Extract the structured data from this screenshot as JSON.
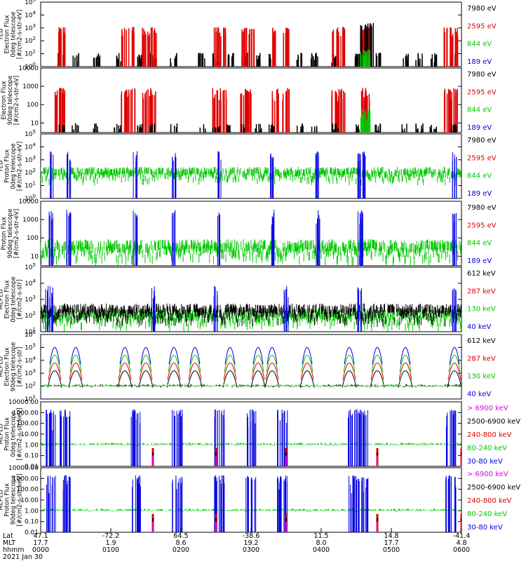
{
  "chart_data": [
    {
      "type": "line",
      "ylabel_lines": [
        "TED",
        "Electron Flux",
        "0deg telescope",
        "[#/cm2-s-str-eV]"
      ],
      "scale": "log",
      "ylim": [
        1,
        100000
      ],
      "tick_labels": [
        "10^0",
        "10^1",
        "10^2",
        "10^3",
        "10^4",
        "10^5"
      ],
      "legend": [
        {
          "name": "7980 eV",
          "color": "#000000"
        },
        {
          "name": "2595 eV",
          "color": "#e00000"
        },
        {
          "name": "844 eV",
          "color": "#00c800"
        },
        {
          "name": "189 eV",
          "color": "#0000e0"
        }
      ],
      "bursts": [
        {
          "series": "7980 eV",
          "x": [
            0.3,
            0.5,
            0.8,
            1.1,
            1.4,
            1.6,
            1.9,
            2.3,
            2.5,
            2.7,
            2.9,
            3.1,
            3.3,
            3.7,
            3.9,
            4.2,
            4.5,
            4.8,
            5.2,
            5.4,
            5.6,
            5.9
          ],
          "value": 10
        },
        {
          "series": "2595 eV",
          "x": [
            0.25,
            0.3,
            1.2,
            1.3,
            1.5,
            1.6,
            2.5,
            2.6,
            2.9,
            3.0,
            3.35,
            3.5,
            4.2,
            4.3,
            4.6,
            4.65,
            5.8,
            5.9
          ],
          "value": 1000
        },
        {
          "series": "7980 eV",
          "x": [
            4.6,
            4.7
          ],
          "value": 2000
        },
        {
          "series": "844 eV",
          "x": [
            4.6,
            4.65
          ],
          "value": 20
        }
      ]
    },
    {
      "type": "line",
      "ylabel_lines": [
        "Electron Flux",
        "90deg telescope",
        "[#/cm2-s-str-eV]"
      ],
      "scale": "log",
      "ylim": [
        3,
        10000
      ],
      "tick_labels": [
        "10",
        "100",
        "1000",
        "10000"
      ],
      "legend": [
        {
          "name": "7980 eV",
          "color": "#000000"
        },
        {
          "name": "2595 eV",
          "color": "#e00000"
        },
        {
          "name": "844 eV",
          "color": "#00c800"
        },
        {
          "name": "189 eV",
          "color": "#0000e0"
        }
      ],
      "bursts": [
        {
          "series": "2595 eV",
          "x": [
            0.25,
            0.3,
            1.2,
            1.3,
            1.5,
            1.6,
            2.5,
            2.6,
            2.9,
            3.0,
            3.35,
            3.5,
            4.2,
            4.3,
            4.6,
            4.65,
            5.8,
            5.9
          ],
          "value": 700
        },
        {
          "series": "7980 eV",
          "x": [
            0.3,
            0.5,
            0.8,
            1.1,
            1.4,
            1.6,
            1.9,
            2.3,
            2.5,
            2.7,
            2.9,
            3.1,
            3.3,
            3.7,
            3.9,
            4.2,
            4.5,
            4.8,
            5.2,
            5.4,
            5.6,
            5.9
          ],
          "value": 8
        },
        {
          "series": "844 eV",
          "x": [
            4.6,
            4.65
          ],
          "value": 50
        }
      ]
    },
    {
      "type": "line",
      "ylabel_lines": [
        "TED",
        "Proton Flux",
        "0deg telescope",
        "[#/cm2-s-str-eV]"
      ],
      "scale": "log",
      "ylim": [
        1,
        100000
      ],
      "tick_labels": [
        "10^0",
        "10^1",
        "10^2",
        "10^3",
        "10^4",
        "10^5"
      ],
      "legend": [
        {
          "name": "7980 eV",
          "color": "#000000"
        },
        {
          "name": "2595 eV",
          "color": "#e00000"
        },
        {
          "name": "844 eV",
          "color": "#00c800"
        },
        {
          "name": "189 eV",
          "color": "#0000e0"
        }
      ],
      "bands": [
        {
          "series": "844 eV",
          "x": [
            0.0,
            6.0
          ],
          "value": 100
        },
        {
          "series": "189 eV",
          "x": [
            0.15,
            0.4,
            1.35,
            1.9,
            2.55,
            3.3,
            3.95,
            4.55,
            4.6,
            5.9
          ],
          "value": 2000
        }
      ]
    },
    {
      "type": "line",
      "ylabel_lines": [
        "Proton Flux",
        "90deg telescope",
        "[#/cm2-s-str-eV]"
      ],
      "scale": "log",
      "ylim": [
        3,
        10000
      ],
      "tick_labels": [
        "10",
        "100",
        "1000",
        "10000"
      ],
      "legend": [
        {
          "name": "7980 eV",
          "color": "#000000"
        },
        {
          "name": "2595 eV",
          "color": "#e00000"
        },
        {
          "name": "844 eV",
          "color": "#00c800"
        },
        {
          "name": "189 eV",
          "color": "#0000e0"
        }
      ],
      "bands": [
        {
          "series": "844 eV",
          "x": [
            0.0,
            6.0
          ],
          "value": 30
        },
        {
          "series": "189 eV",
          "x": [
            0.15,
            0.4,
            1.35,
            1.9,
            2.55,
            3.3,
            3.95,
            4.55,
            4.6,
            5.9
          ],
          "value": 1500
        }
      ]
    },
    {
      "type": "line",
      "ylabel_lines": [
        "MEPED",
        "Electron Flux",
        "0deg telescope",
        "[#/cm2-s-str]"
      ],
      "scale": "log",
      "ylim": [
        10,
        100000
      ],
      "tick_labels": [
        "10^1",
        "10^2",
        "10^3",
        "10^4",
        "10^5"
      ],
      "legend": [
        {
          "name": "612 keV",
          "color": "#000000"
        },
        {
          "name": "287 keV",
          "color": "#e00000"
        },
        {
          "name": "130 keV",
          "color": "#00c800"
        },
        {
          "name": "40 keV",
          "color": "#0000e0"
        }
      ],
      "bands": [
        {
          "series": "130 keV",
          "x": [
            0.0,
            6.0
          ],
          "value": 100
        },
        {
          "series": "612 keV",
          "x": [
            0.0,
            6.0
          ],
          "value": 200
        },
        {
          "series": "40 keV",
          "x": [
            0.1,
            0.15,
            1.6,
            2.5,
            3.5,
            4.55,
            5.9
          ],
          "value": 3000
        }
      ]
    },
    {
      "type": "line",
      "ylabel_lines": [
        "MEPED",
        "Electron Flux",
        "90deg telescope",
        "[#/cm2-s-str]"
      ],
      "scale": "log",
      "ylim": [
        10,
        1000000
      ],
      "tick_labels": [
        "10^1",
        "10^2",
        "10^3",
        "10^4",
        "10^5",
        "10^6"
      ],
      "legend": [
        {
          "name": "612 keV",
          "color": "#000000"
        },
        {
          "name": "287 keV",
          "color": "#e00000"
        },
        {
          "name": "130 keV",
          "color": "#00c800"
        },
        {
          "name": "40 keV",
          "color": "#0000e0"
        }
      ],
      "humps": [
        {
          "x": [
            0.2,
            0.5,
            1.2,
            1.5,
            1.9,
            2.2,
            2.7,
            3.1,
            3.3,
            3.8,
            4.4,
            4.8,
            5.2,
            5.9
          ],
          "value": 100000
        }
      ]
    },
    {
      "type": "line",
      "ylabel_lines": [
        "MEPED",
        "Proton Flux",
        "0deg telescope",
        "[#/cm2-s-str-keV]"
      ],
      "scale": "log",
      "ylim": [
        0.01,
        10000
      ],
      "tick_labels": [
        "0.01",
        "0.10",
        "1.00",
        "10.00",
        "100.00",
        "1000.00",
        "10000.00"
      ],
      "legend": [
        {
          "name": "> 6900 keV",
          "color": "#e000e0"
        },
        {
          "name": "2500-6900 keV",
          "color": "#000000"
        },
        {
          "name": "240-800 keV",
          "color": "#e00000"
        },
        {
          "name": "80-240 keV",
          "color": "#00c800"
        },
        {
          "name": "30-80 keV",
          "color": "#0000e0"
        }
      ]
    },
    {
      "type": "line",
      "ylabel_lines": [
        "MEPED",
        "Proton Flux",
        "90deg telescope",
        "[#/cm2-s-str-keV]"
      ],
      "scale": "log",
      "ylim": [
        0.01,
        10000
      ],
      "tick_labels": [
        "0.01",
        "0.10",
        "1.00",
        "10.00",
        "100.00",
        "1000.00",
        "10000.00"
      ],
      "legend": [
        {
          "name": "> 6900 keV",
          "color": "#e000e0"
        },
        {
          "name": "2500-6900 keV",
          "color": "#000000"
        },
        {
          "name": "240-800 keV",
          "color": "#e00000"
        },
        {
          "name": "80-240 keV",
          "color": "#00c800"
        },
        {
          "name": "30-80 keV",
          "color": "#0000e0"
        }
      ]
    }
  ],
  "x_axis": {
    "row_labels": [
      "Lat",
      "MLT",
      "hhmm"
    ],
    "date": "2021 Jan 30",
    "ticks": [
      {
        "lat": "47.1",
        "mlt": "17.7",
        "hhmm": "0000",
        "hours": 0
      },
      {
        "lat": "-72.2",
        "mlt": "1.9",
        "hhmm": "0100",
        "hours": 1
      },
      {
        "lat": "64.5",
        "mlt": "8.6",
        "hhmm": "0200",
        "hours": 2
      },
      {
        "lat": "-38.6",
        "mlt": "19.2",
        "hhmm": "0300",
        "hours": 3
      },
      {
        "lat": "11.5",
        "mlt": "8.0",
        "hhmm": "0400",
        "hours": 4
      },
      {
        "lat": "14.8",
        "mlt": "17.7",
        "hhmm": "0500",
        "hours": 5
      },
      {
        "lat": "-41.4",
        "mlt": "4.8",
        "hhmm": "0600",
        "hours": 6
      }
    ],
    "range_hours": [
      0,
      6
    ]
  }
}
